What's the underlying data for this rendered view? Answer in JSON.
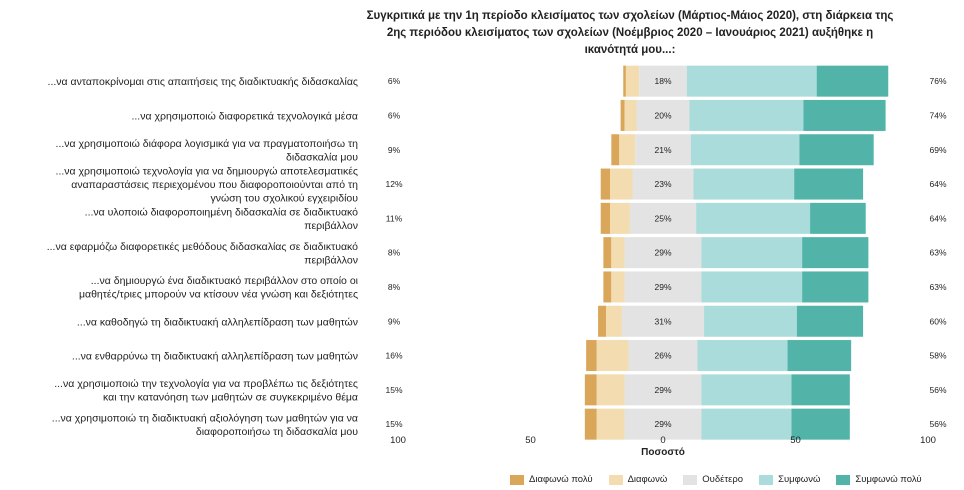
{
  "chart_data": {
    "type": "bar",
    "orientation": "horizontal-diverging",
    "title_lines": [
      "Συγκριτικά με την 1η περίοδο κλεισίματος των σχολείων (Μάρτιος-Μάιος 2020), στη διάρκεια της",
      "2ης περιόδου κλεισίματος των σχολείων (Νοέμβριος 2020 – Ιανουάριος 2021) αυξήθηκε η",
      "ικανότητά μου...:"
    ],
    "xlabel": "Ποσοστό",
    "xlim": [
      -100,
      100
    ],
    "xticks": [
      -100,
      -50,
      0,
      50,
      100
    ],
    "xtick_labels": [
      "100",
      "50",
      "0",
      "50",
      "100"
    ],
    "grid": false,
    "legend_position": "bottom",
    "series": [
      {
        "name": "Διαφωνώ πολύ",
        "color": "#d9a65a"
      },
      {
        "name": "Διαφωνώ",
        "color": "#f2dcb0"
      },
      {
        "name": "Ουδέτερο",
        "color": "#e3e3e3"
      },
      {
        "name": "Συμφωνώ",
        "color": "#a9dcda"
      },
      {
        "name": "Συμφωνώ πολύ",
        "color": "#52b3a8"
      }
    ],
    "categories": [
      {
        "label": [
          "...να ανταποκρίνομαι στις απαιτήσεις της διαδικτυακής διδασκαλίας"
        ],
        "left_pct": "6%",
        "neutral_pct": "18%",
        "right_pct": "76%",
        "values": [
          1,
          5,
          18,
          49,
          27
        ]
      },
      {
        "label": [
          "...να χρησιμοποιώ διαφορετικά τεχνολογικά μέσα"
        ],
        "left_pct": "6%",
        "neutral_pct": "20%",
        "right_pct": "74%",
        "values": [
          1.5,
          4.5,
          20,
          43,
          31
        ]
      },
      {
        "label": [
          "...να χρησιμοποιώ διάφορα λογισμικά για να πραγματοποιήσω τη",
          "διδασκαλία μου"
        ],
        "left_pct": "9%",
        "neutral_pct": "21%",
        "right_pct": "69%",
        "values": [
          3,
          6,
          21,
          41,
          28
        ]
      },
      {
        "label": [
          "...να χρησιμοποιώ τεχνολογία για να δημιουργώ αποτελεσματικές",
          "αναπαραστάσεις περιεχομένου που διαφοροποιούνται από τη",
          "γνώση του σχολικού εγχειριδίου"
        ],
        "left_pct": "12%",
        "neutral_pct": "23%",
        "right_pct": "64%",
        "values": [
          3.5,
          8.5,
          23,
          38,
          26
        ]
      },
      {
        "label": [
          "...να υλοποιώ διαφοροποιημένη διδασκαλία σε διαδικτυακό",
          "περιβάλλον"
        ],
        "left_pct": "11%",
        "neutral_pct": "25%",
        "right_pct": "64%",
        "values": [
          3.5,
          7.5,
          25,
          43,
          21
        ]
      },
      {
        "label": [
          "...να εφαρμόζω διαφορετικές μεθόδους διδασκαλίας σε διαδικτυακό",
          "περιβάλλον"
        ],
        "left_pct": "8%",
        "neutral_pct": "29%",
        "right_pct": "63%",
        "values": [
          3,
          5,
          29,
          38,
          25
        ]
      },
      {
        "label": [
          "...να δημιουργώ ένα διαδικτυακό περιβάλλον στο οποίο οι",
          "μαθητές/τριες μπορούν να κτίσουν νέα γνώση και δεξιότητες"
        ],
        "left_pct": "8%",
        "neutral_pct": "29%",
        "right_pct": "63%",
        "values": [
          3,
          5,
          29,
          38,
          25
        ]
      },
      {
        "label": [
          "...να καθοδηγώ τη διαδικτυακή αλληλεπίδραση των μαθητών"
        ],
        "left_pct": "9%",
        "neutral_pct": "31%",
        "right_pct": "60%",
        "values": [
          3,
          6,
          31,
          35,
          25
        ]
      },
      {
        "label": [
          "...να ενθαρρύνω τη διαδικτυακή αλληλεπίδραση των μαθητών"
        ],
        "left_pct": "16%",
        "neutral_pct": "26%",
        "right_pct": "58%",
        "values": [
          4,
          12,
          26,
          34,
          24
        ]
      },
      {
        "label": [
          "...να χρησιμοποιώ την τεχνολογία για να προβλέπω τις δεξιότητες",
          "και την κατανόηση των μαθητών σε συγκεκριμένο θέμα"
        ],
        "left_pct": "15%",
        "neutral_pct": "29%",
        "right_pct": "56%",
        "values": [
          4.5,
          10.5,
          29,
          34,
          22
        ]
      },
      {
        "label": [
          "...να χρησιμοποιώ τη διαδικτυακή αξιολόγηση των μαθητών για να",
          "διαφοροποιήσω τη διδασκαλία μου"
        ],
        "left_pct": "15%",
        "neutral_pct": "29%",
        "right_pct": "56%",
        "values": [
          4.5,
          10.5,
          29,
          34,
          22
        ]
      }
    ]
  }
}
